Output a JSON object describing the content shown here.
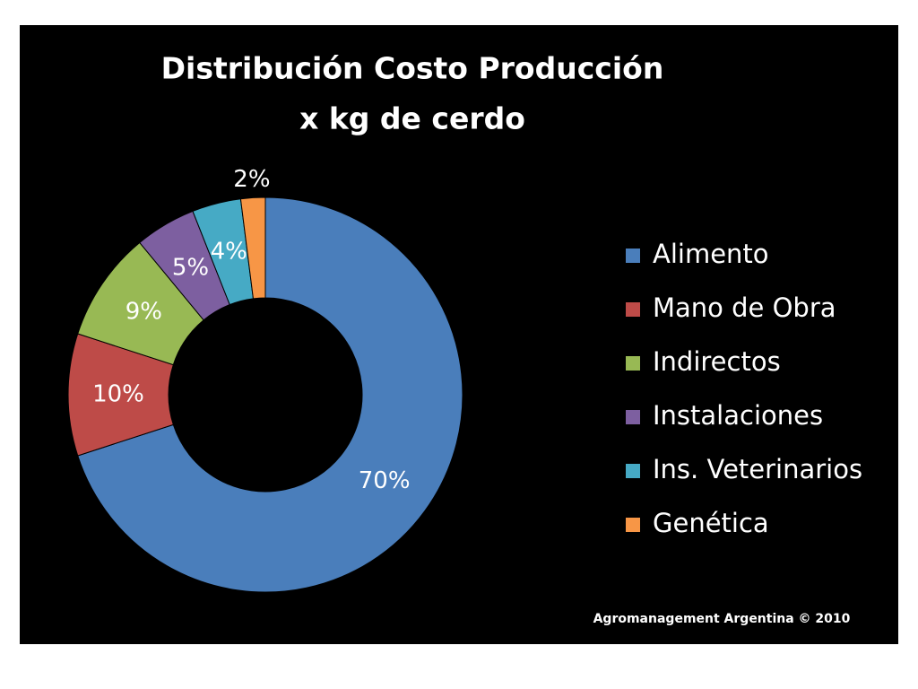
{
  "chart_data": {
    "type": "donut",
    "title": [
      "Distribución  Costo Producción",
      "x kg de cerdo"
    ],
    "categories": [
      "Alimento",
      "Mano de Obra",
      "Indirectos",
      "Instalaciones",
      "Ins. Veterinarios",
      "Genética"
    ],
    "values": [
      70,
      10,
      9,
      5,
      4,
      2
    ],
    "value_labels": [
      "70%",
      "10%",
      "9%",
      "5%",
      "4%",
      "2%"
    ],
    "colors": [
      "#4a7ebb",
      "#be4b48",
      "#98b954",
      "#7d5fa0",
      "#46aac5",
      "#f79646"
    ],
    "legend": "right",
    "source": "Agromanagement Argentina ©  2010"
  }
}
